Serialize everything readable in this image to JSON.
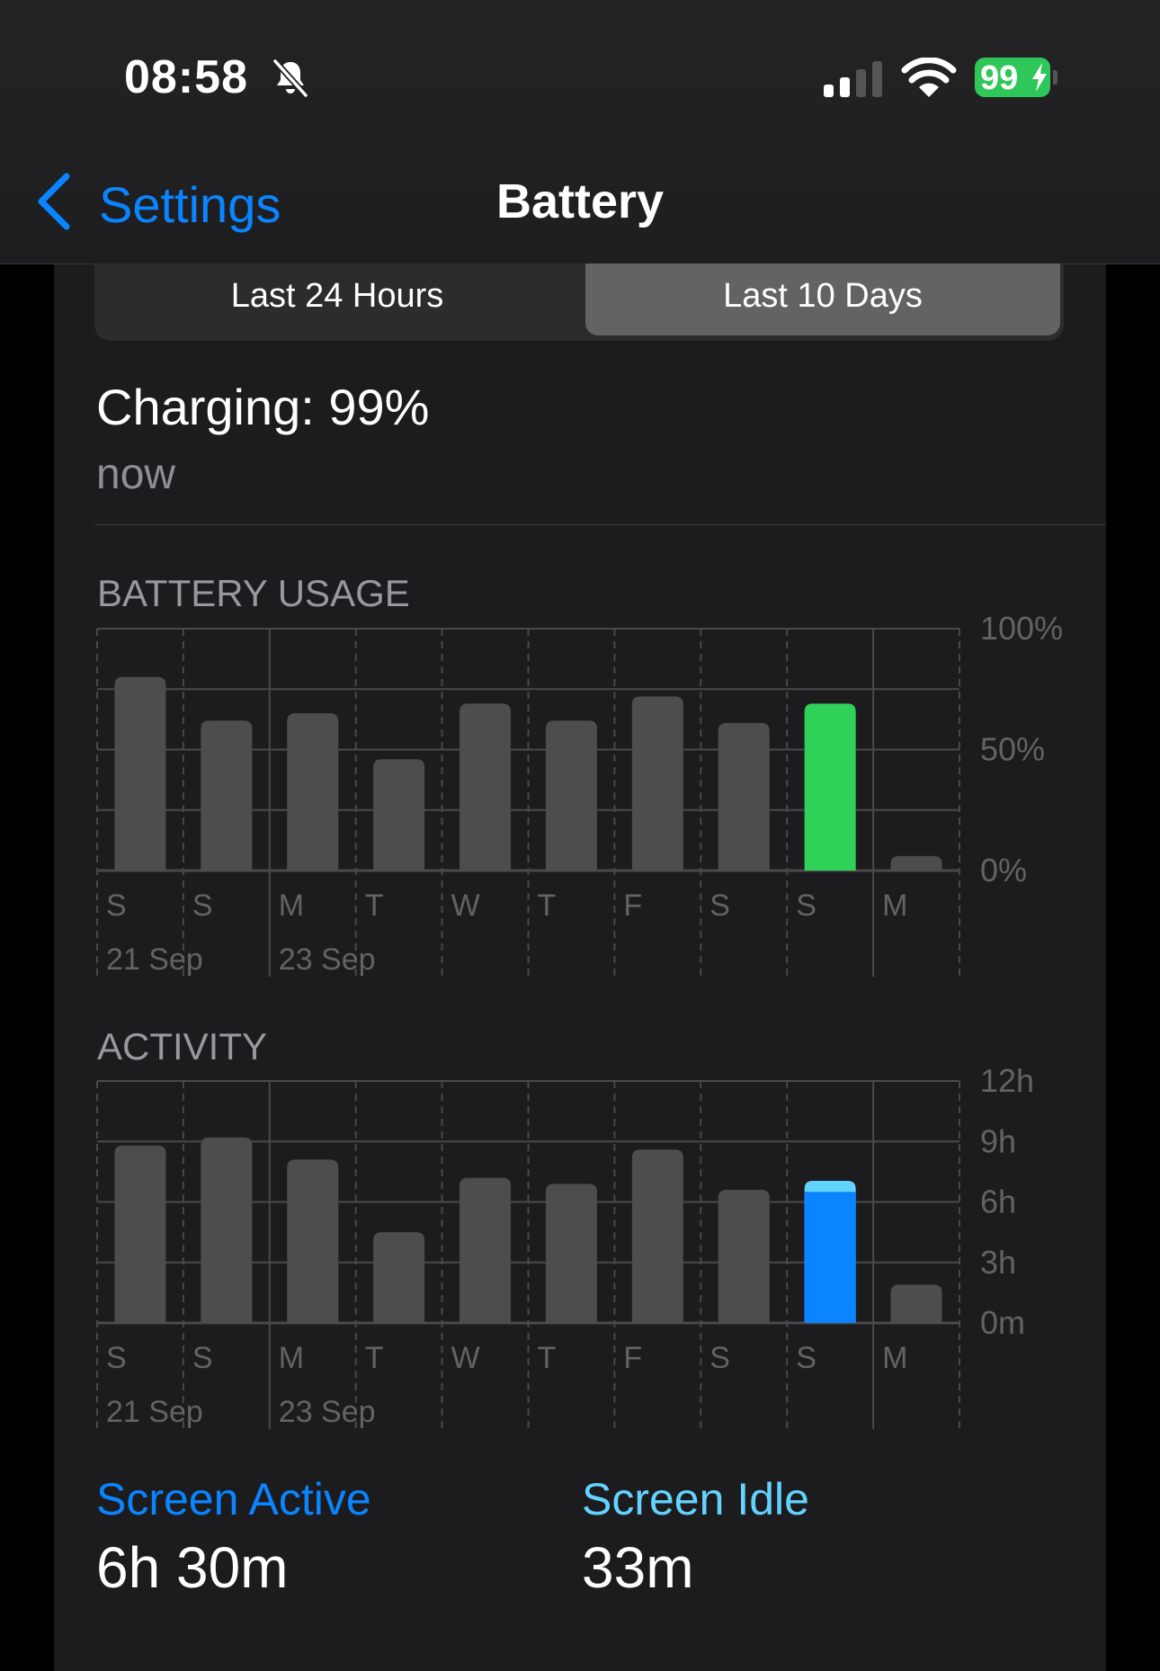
{
  "status_bar": {
    "time": "08:58",
    "battery_level": "99",
    "icons": [
      "bell-slash-icon",
      "cellular-signal-icon",
      "wifi-icon",
      "battery-charging-icon"
    ],
    "signal_bars_active": 2
  },
  "nav": {
    "back_label": "Settings",
    "title": "Battery"
  },
  "segments": [
    {
      "label": "Last 24 Hours",
      "selected": false
    },
    {
      "label": "Last 10 Days",
      "selected": true
    }
  ],
  "charging": {
    "text": "Charging: 99%",
    "time": "now"
  },
  "colors": {
    "accent": "#0a84ff",
    "battery_today": "#30d158",
    "screen_active": "#0a84ff",
    "screen_idle": "#64d2ff",
    "bar": "#4d4d4f"
  },
  "chart_data": [
    {
      "type": "bar",
      "title": "BATTERY USAGE",
      "categories": [
        "S",
        "S",
        "M",
        "T",
        "W",
        "T",
        "F",
        "S",
        "S",
        "M"
      ],
      "date_labels": [
        {
          "index": 0,
          "label": "21 Sep"
        },
        {
          "index": 2,
          "label": "23 Sep"
        }
      ],
      "values": [
        80,
        62,
        65,
        46,
        69,
        62,
        72,
        61,
        69,
        6
      ],
      "highlight_index": 8,
      "ylim": [
        0,
        100
      ],
      "yticks": [
        "0%",
        "50%",
        "100%"
      ],
      "grid": true
    },
    {
      "type": "bar",
      "title": "ACTIVITY",
      "categories": [
        "S",
        "S",
        "M",
        "T",
        "W",
        "T",
        "F",
        "S",
        "S",
        "M"
      ],
      "date_labels": [
        {
          "index": 0,
          "label": "21 Sep"
        },
        {
          "index": 2,
          "label": "23 Sep"
        }
      ],
      "unit": "hours",
      "values": [
        8.8,
        9.2,
        8.1,
        4.5,
        7.2,
        6.9,
        8.6,
        6.6,
        7.05,
        1.9
      ],
      "highlight_index": 8,
      "highlight_stack": {
        "screen_active": 6.5,
        "screen_idle": 0.55
      },
      "ylim": [
        0,
        12
      ],
      "yticks": [
        "0m",
        "3h",
        "6h",
        "9h",
        "12h"
      ],
      "grid": true
    }
  ],
  "summary": {
    "screen_active_label": "Screen Active",
    "screen_active_value": "6h 30m",
    "screen_idle_label": "Screen Idle",
    "screen_idle_value": "33m"
  }
}
